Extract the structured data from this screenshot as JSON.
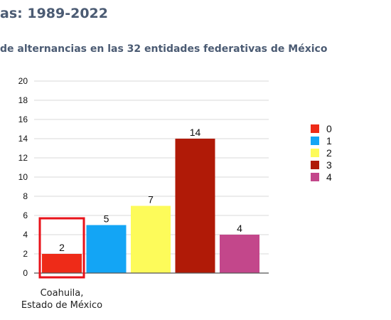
{
  "title": "as: 1989-2022",
  "subtitle": "de alternancias en las 32 entidades federativas de México",
  "annotation": {
    "line1": "Coahuila,",
    "line2": "Estado de México"
  },
  "chart_data": {
    "type": "bar",
    "categories": [
      "0",
      "1",
      "2",
      "3",
      "4"
    ],
    "values": [
      2,
      5,
      7,
      14,
      4
    ],
    "colors": [
      "#ee2b18",
      "#13a5f5",
      "#fdfb5a",
      "#b01a07",
      "#c3478b"
    ],
    "ylim": [
      0,
      20
    ],
    "yticks": [
      0,
      2,
      4,
      6,
      8,
      10,
      12,
      14,
      16,
      18,
      20
    ],
    "grid": true,
    "legend": {
      "placement": "right",
      "entries": [
        "0",
        "1",
        "2",
        "3",
        "4"
      ]
    },
    "highlight": {
      "category": "0",
      "color": "#e8121a"
    }
  }
}
